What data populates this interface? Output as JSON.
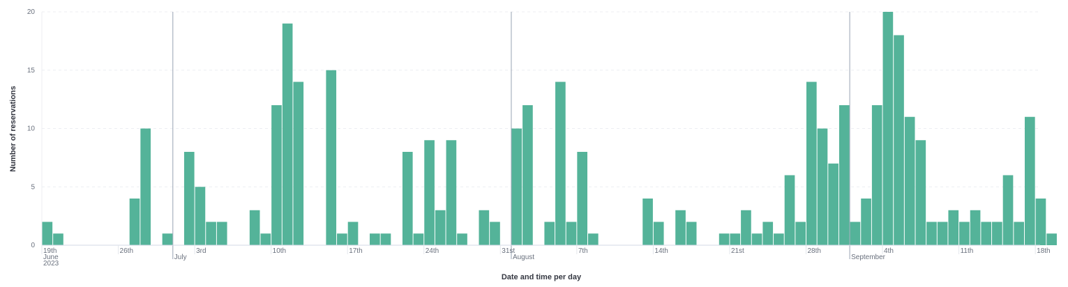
{
  "chart_data": {
    "type": "bar",
    "title": "",
    "xlabel": "Date and time per day",
    "ylabel": "Number of reservations",
    "x_start_date": "2023-06-19",
    "x_end_date": "2023-09-20",
    "ylim": [
      0,
      20
    ],
    "y_ticks": [
      "0",
      "5",
      "10",
      "15",
      "20"
    ],
    "grid": "horizontal dashed",
    "bar_color": "#54b399",
    "major_lines_color": "#98a2b3",
    "highlight_color": "#e0e0e0",
    "series": [
      {
        "values": [
          2,
          1,
          0,
          0,
          0,
          0,
          0,
          0,
          4,
          10,
          0,
          1,
          0,
          8,
          5,
          2,
          2,
          0,
          0,
          3,
          1,
          12,
          19,
          14,
          0,
          0,
          15,
          1,
          2,
          0,
          1,
          1,
          0,
          8,
          1,
          9,
          3,
          9,
          1,
          0,
          3,
          2,
          0,
          10,
          12,
          0,
          2,
          14,
          2,
          8,
          1,
          0,
          0,
          0,
          0,
          4,
          2,
          0,
          3,
          2,
          0,
          0,
          1,
          1,
          3,
          1,
          2,
          1,
          6,
          2,
          14,
          10,
          7,
          12,
          2,
          4,
          12,
          20,
          18,
          11,
          9,
          2,
          2,
          3,
          2,
          3,
          2,
          2,
          6,
          2,
          11,
          4,
          1
        ]
      }
    ],
    "x_tick_labels": [
      {
        "date": "2023-06-19",
        "label": "19th"
      },
      {
        "date": "2023-06-26",
        "label": "26th"
      },
      {
        "date": "2023-07-03",
        "label": "3rd"
      },
      {
        "date": "2023-07-10",
        "label": "10th"
      },
      {
        "date": "2023-07-17",
        "label": "17th"
      },
      {
        "date": "2023-07-24",
        "label": "24th"
      },
      {
        "date": "2023-07-31",
        "label": "31st"
      },
      {
        "date": "2023-08-07",
        "label": "7th"
      },
      {
        "date": "2023-08-14",
        "label": "14th"
      },
      {
        "date": "2023-08-21",
        "label": "21st"
      },
      {
        "date": "2023-08-28",
        "label": "28th"
      },
      {
        "date": "2023-09-04",
        "label": "4th"
      },
      {
        "date": "2023-09-11",
        "label": "11th"
      },
      {
        "date": "2023-09-18",
        "label": "18th"
      }
    ],
    "x_major_labels": [
      {
        "date": "2023-06-19",
        "label": "June",
        "sub": "2023"
      },
      {
        "date": "2023-07-01",
        "label": "July"
      },
      {
        "date": "2023-08-01",
        "label": "August"
      },
      {
        "date": "2023-09-01",
        "label": "September"
      }
    ],
    "highlight_from": "2023-09-20"
  }
}
